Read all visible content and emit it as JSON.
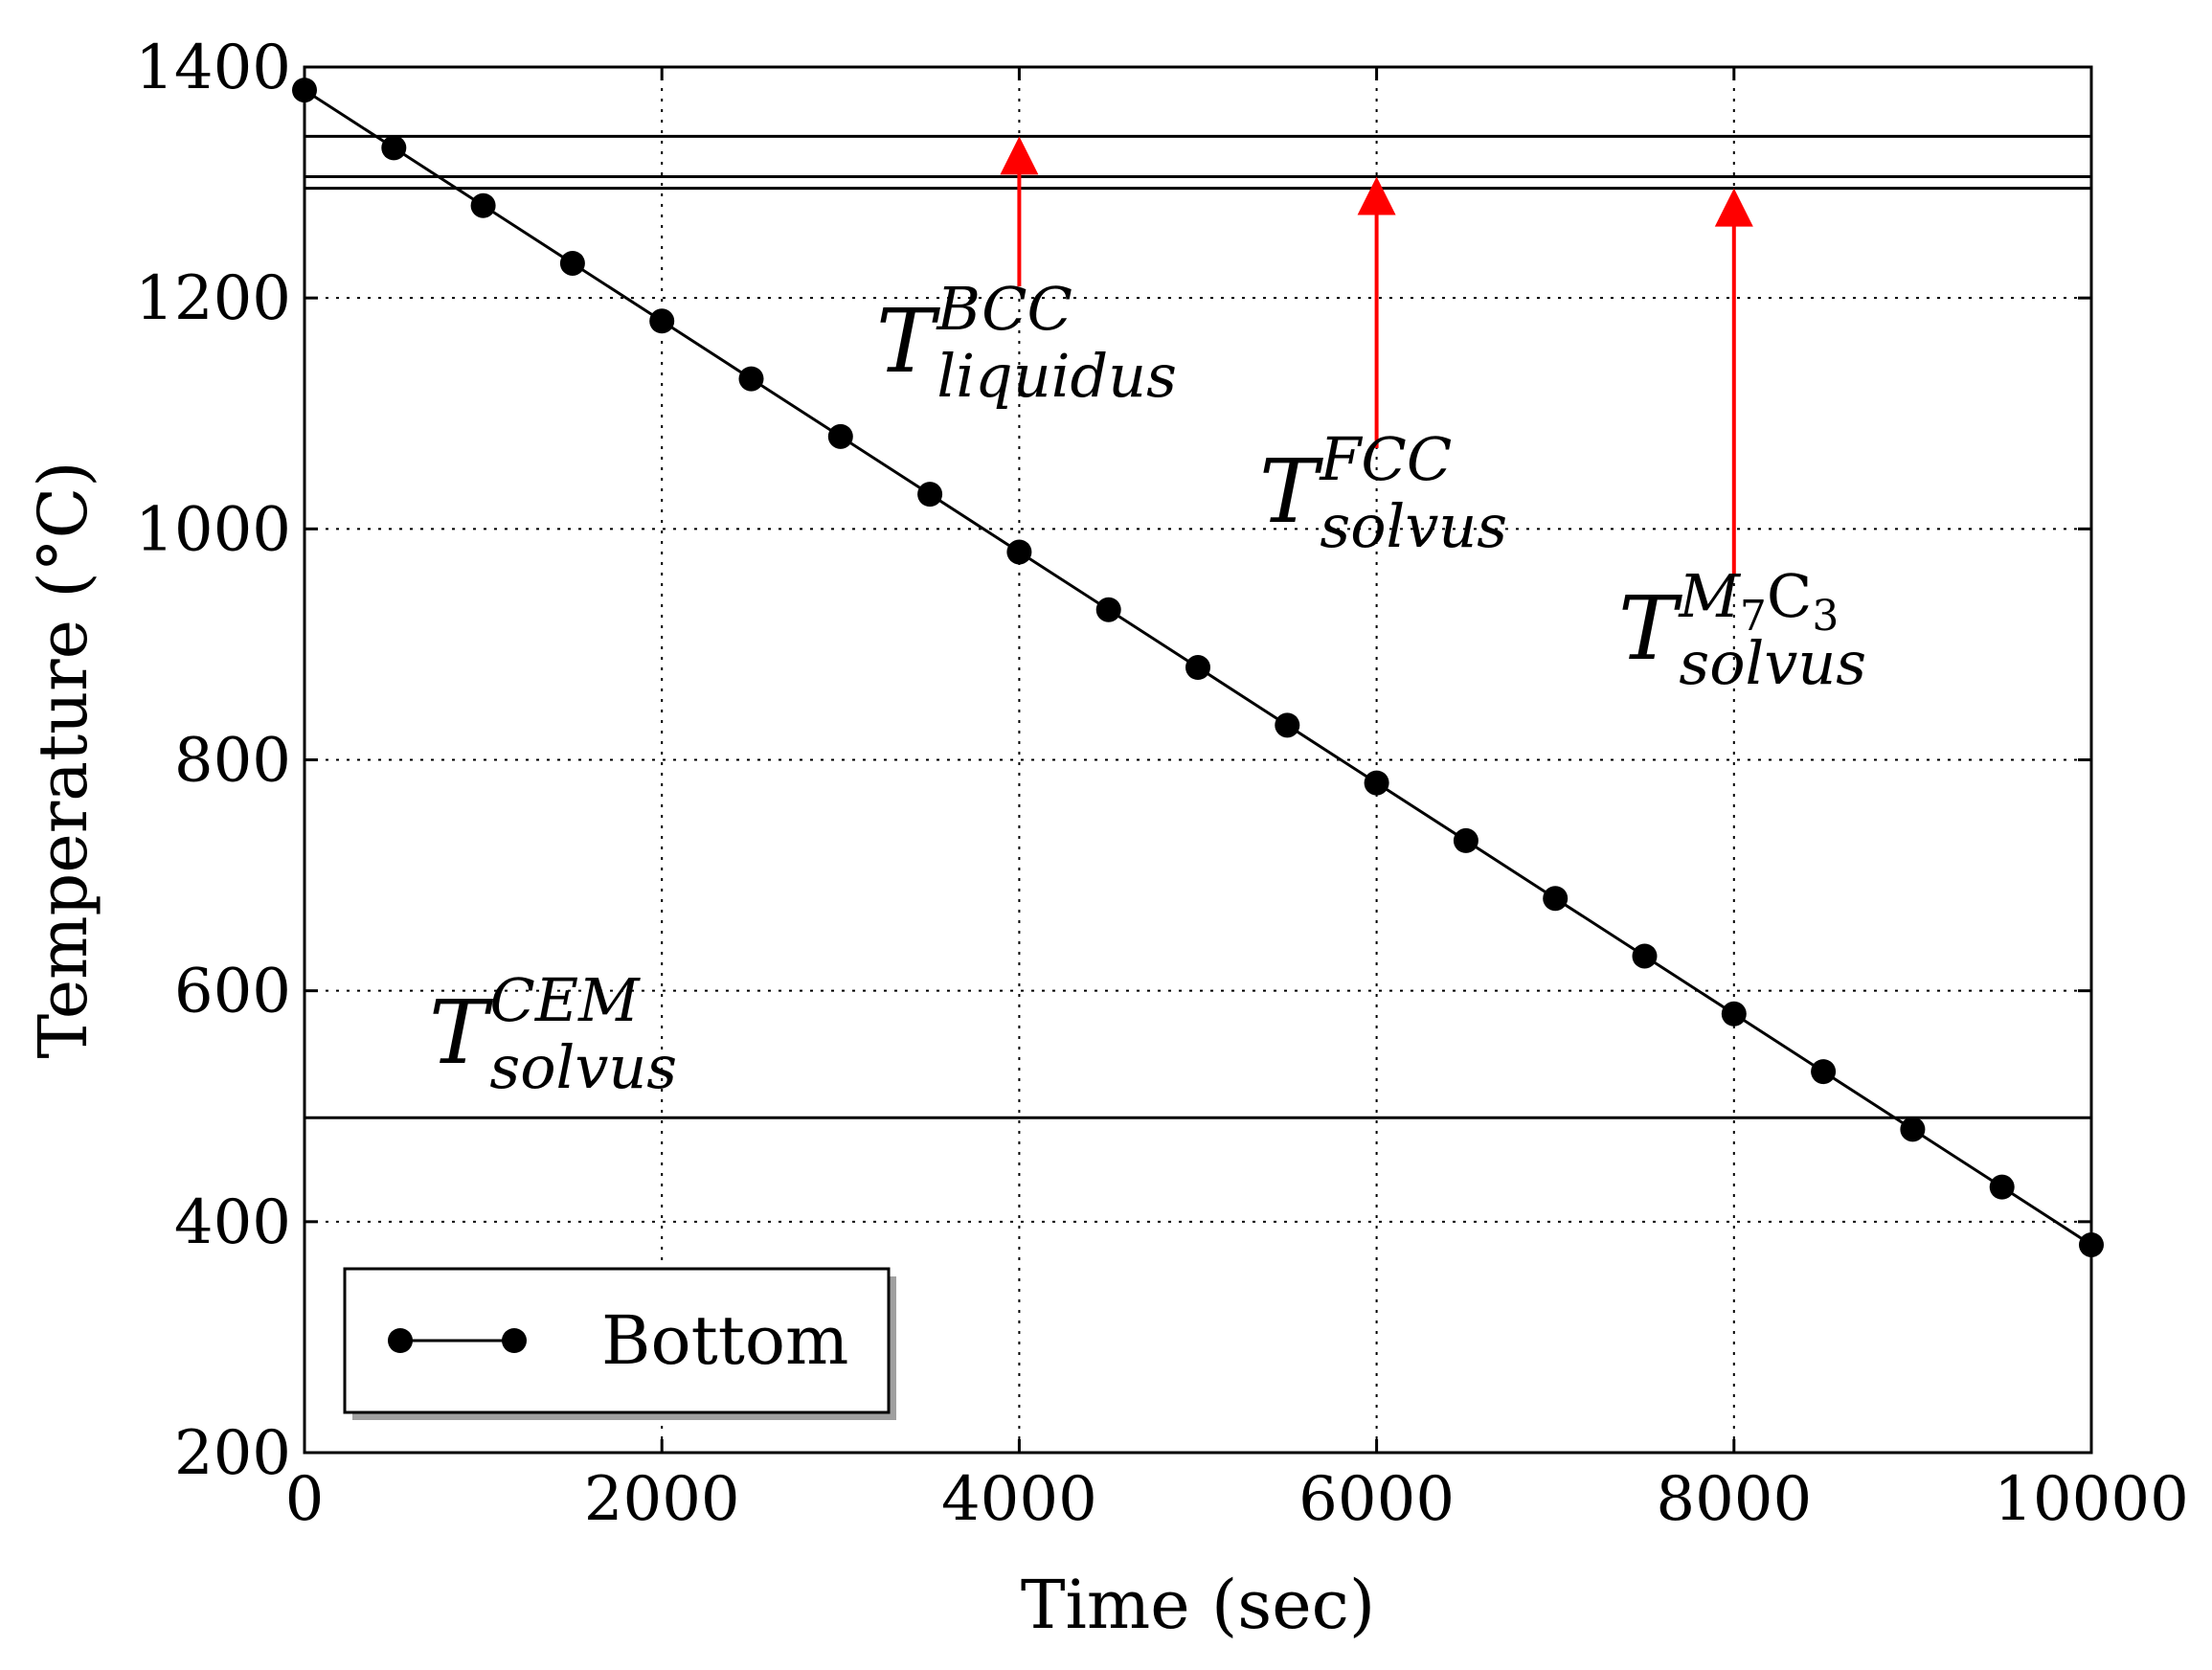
{
  "chart_data": {
    "type": "line",
    "title": "",
    "xlabel": "Time (sec)",
    "ylabel": "Temperature (°C)",
    "xlim": [
      0,
      10000
    ],
    "ylim": [
      200,
      1400
    ],
    "xticks": [
      0,
      2000,
      4000,
      6000,
      8000,
      10000
    ],
    "yticks": [
      200,
      400,
      600,
      800,
      1000,
      1200,
      1400
    ],
    "grid": true,
    "legend_position": "bottom-left",
    "series": [
      {
        "name": "Bottom",
        "color": "#000000",
        "marker": "circle",
        "x": [
          0,
          500,
          1000,
          1500,
          2000,
          2500,
          3000,
          3500,
          4000,
          4500,
          5000,
          5500,
          6000,
          6500,
          7000,
          7500,
          8000,
          8500,
          9000,
          9500,
          10000
        ],
        "y": [
          1380,
          1330,
          1280,
          1230,
          1180,
          1130,
          1080,
          1030,
          980,
          930,
          880,
          830,
          780,
          730,
          680,
          630,
          580,
          530,
          480,
          430,
          380
        ]
      }
    ],
    "reference_lines": [
      1340,
      1305,
      1295,
      490
    ],
    "annotations": [
      {
        "main": "T",
        "sup": "BCC",
        "sub": "liquidus",
        "arrow_x": 4000,
        "arrow_from": 1210,
        "arrow_to": 1340
      },
      {
        "main": "T",
        "sup": "FCC",
        "sub": "solvus",
        "arrow_x": 6000,
        "arrow_from": 1070,
        "arrow_to": 1305
      },
      {
        "main": "T",
        "sup": "M",
        "sup_sub": "7",
        "sup_tail": "C",
        "sup_tail_sub": "3",
        "sub": "solvus",
        "arrow_x": 8000,
        "arrow_from": 960,
        "arrow_to": 1295
      },
      {
        "main": "T",
        "sup": "CEM",
        "sub": "solvus"
      }
    ],
    "arrow_color": "#ff0000"
  }
}
